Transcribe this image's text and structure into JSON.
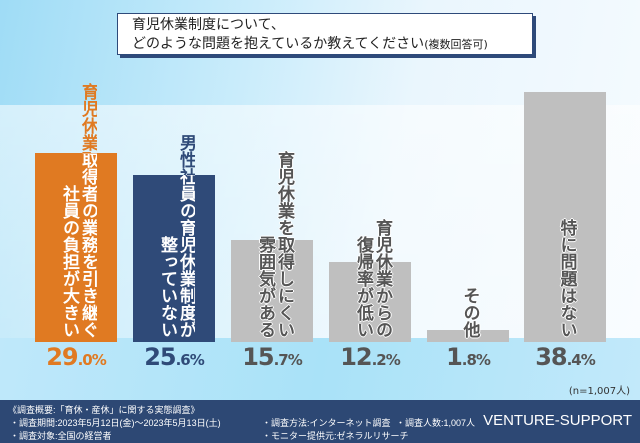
{
  "title": {
    "line1": "育児休業制度について、",
    "line2": "どのような問題を抱えているか教えてください",
    "note": "(複数回答可)"
  },
  "chart_data": {
    "type": "bar",
    "title": "育児休業制度について、どのような問題を抱えているか教えてください(複数回答可)",
    "unit": "%",
    "ylim": [
      0,
      40
    ],
    "grid": false,
    "categories": [
      {
        "lines": [
          "育児休業取得者の業務を引き継ぐ",
          "社員の負担が大きい"
        ],
        "value": 29.0,
        "int": "29",
        "dec": ".0%",
        "color": "#e07a22",
        "text_color": "#e07a22",
        "inner_text": "#ffffff"
      },
      {
        "lines": [
          "男性社員の育児休業制度が",
          "整っていない"
        ],
        "value": 25.6,
        "int": "25",
        "dec": ".6%",
        "color": "#2f4a78",
        "text_color": "#2f4a78",
        "inner_text": "#ffffff"
      },
      {
        "lines": [
          "育児休業を取得しにくい",
          "雰囲気がある"
        ],
        "value": 15.7,
        "int": "15",
        "dec": ".7%",
        "color": "#bfbfbf",
        "text_color": "#555555",
        "inner_text": "#555555"
      },
      {
        "lines": [
          "育児休業からの",
          "復帰率が低い"
        ],
        "value": 12.2,
        "int": "12",
        "dec": ".2%",
        "color": "#bfbfbf",
        "text_color": "#555555",
        "inner_text": "#555555"
      },
      {
        "lines": [
          "その他"
        ],
        "value": 1.8,
        "int": "1",
        "dec": ".8%",
        "color": "#bfbfbf",
        "text_color": "#555555",
        "inner_text": "#555555"
      },
      {
        "lines": [
          "特に問題はない"
        ],
        "value": 38.4,
        "int": "38",
        "dec": ".4%",
        "color": "#bfbfbf",
        "text_color": "#555555",
        "inner_text": "#555555"
      }
    ],
    "sample": "(n=1,007人)"
  },
  "footer": {
    "summary": "《調査概要:「育休・産休」に関する実態調査》",
    "period": "・調査期間:2023年5月12日(金)〜2023年5月13日(土)",
    "target": "・調査対象:全国の経営者",
    "method": "・調査方法:インターネット調査",
    "provider": "・モニター提供元:ゼネラルリサーチ",
    "count": "・調査人数:1,007人",
    "brand": "VENTURE-SUPPORT"
  }
}
